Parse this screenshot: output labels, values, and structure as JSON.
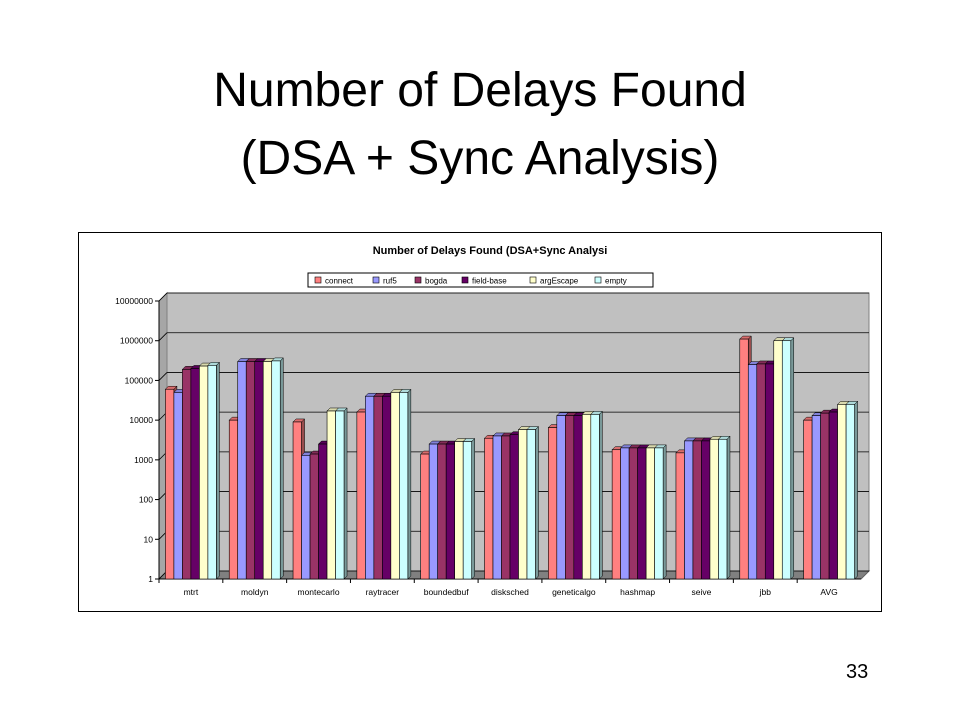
{
  "slide": {
    "title_line1": "Number of Delays Found",
    "title_line2": "(DSA + Sync Analysis)",
    "page_number": "33"
  },
  "chart_data": {
    "type": "bar",
    "title": "Number of Delays Found (DSA+Sync Analysi",
    "xlabel": "",
    "ylabel": "",
    "y_scale": "log",
    "ylim": [
      1,
      10000000
    ],
    "y_ticks": [
      "1",
      "10",
      "100",
      "1000",
      "10000",
      "100000",
      "1000000",
      "10000000"
    ],
    "grid": true,
    "legend_position": "top",
    "categories": [
      "mtrt",
      "moldyn",
      "montecarlo",
      "raytracer",
      "boundedbuf",
      "disksched",
      "geneticalgo",
      "hashmap",
      "seive",
      "jbb",
      "AVG"
    ],
    "series": [
      {
        "name": "connect",
        "color": "#ff8080",
        "values": [
          60000,
          10000,
          9000,
          16000,
          1400,
          3500,
          6500,
          1800,
          1500,
          1100000,
          10000
        ]
      },
      {
        "name": "ruf5",
        "color": "#9999ff",
        "values": [
          50000,
          300000,
          1300,
          40000,
          2500,
          4000,
          13000,
          2000,
          3000,
          250000,
          13000
        ]
      },
      {
        "name": "bogda",
        "color": "#993366",
        "values": [
          190000,
          300000,
          1400,
          40000,
          2500,
          4000,
          13000,
          2000,
          3000,
          260000,
          15000
        ]
      },
      {
        "name": "field-base",
        "color": "#660066",
        "values": [
          200000,
          300000,
          2500,
          40000,
          2500,
          4300,
          13000,
          2000,
          3000,
          260000,
          16000
        ]
      },
      {
        "name": "argEscape",
        "color": "#ffffcc",
        "values": [
          230000,
          300000,
          17000,
          50000,
          2900,
          5800,
          14000,
          2000,
          3300,
          1000000,
          25000
        ]
      },
      {
        "name": "empty",
        "color": "#ccffff",
        "values": [
          240000,
          310000,
          17000,
          50000,
          2900,
          5800,
          14000,
          2000,
          3300,
          1000000,
          25000
        ]
      }
    ]
  }
}
